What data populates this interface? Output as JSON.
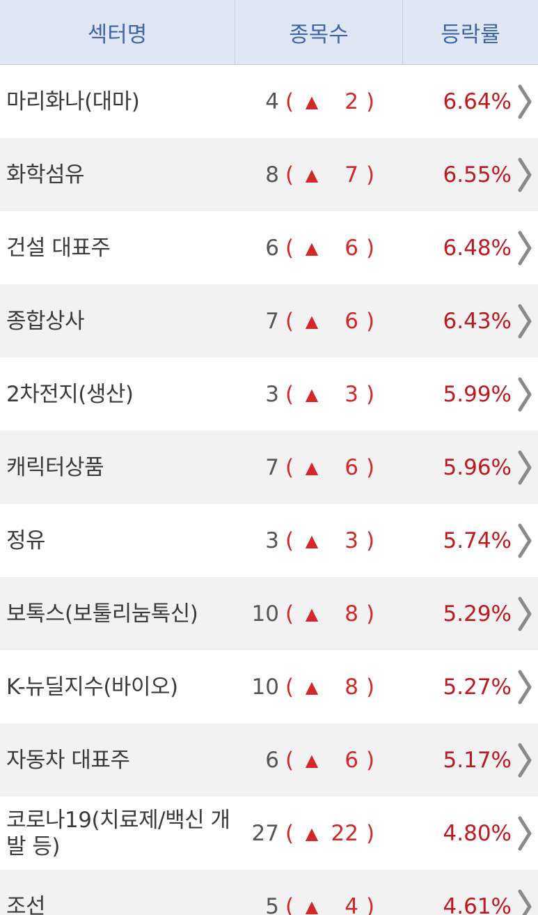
{
  "header": {
    "sector": "섹터명",
    "count": "종목수",
    "rate": "등락률"
  },
  "icons": {
    "up": "triangle-up-icon",
    "more": "chevron-right-icon"
  },
  "colors": {
    "header_bg": "#dfe7f4",
    "header_text": "#3f64a8",
    "up_red": "#d42727"
  },
  "rows": [
    {
      "name": "마리화나(대마)",
      "total": "4",
      "up": "2",
      "rate": "6.64%"
    },
    {
      "name": "화학섬유",
      "total": "8",
      "up": "7",
      "rate": "6.55%"
    },
    {
      "name": "건설 대표주",
      "total": "6",
      "up": "6",
      "rate": "6.48%"
    },
    {
      "name": "종합상사",
      "total": "7",
      "up": "6",
      "rate": "6.43%"
    },
    {
      "name": "2차전지(생산)",
      "total": "3",
      "up": "3",
      "rate": "5.99%"
    },
    {
      "name": "캐릭터상품",
      "total": "7",
      "up": "6",
      "rate": "5.96%"
    },
    {
      "name": "정유",
      "total": "3",
      "up": "3",
      "rate": "5.74%"
    },
    {
      "name": "보톡스(보툴리눔톡신)",
      "total": "10",
      "up": "8",
      "rate": "5.29%"
    },
    {
      "name": "K-뉴딜지수(바이오)",
      "total": "10",
      "up": "8",
      "rate": "5.27%"
    },
    {
      "name": "자동차 대표주",
      "total": "6",
      "up": "6",
      "rate": "5.17%"
    },
    {
      "name": "코로나19(치료제/백신 개발 등)",
      "total": "27",
      "up": "22",
      "rate": "4.80%"
    },
    {
      "name": "조선",
      "total": "5",
      "up": "4",
      "rate": "4.61%"
    }
  ]
}
